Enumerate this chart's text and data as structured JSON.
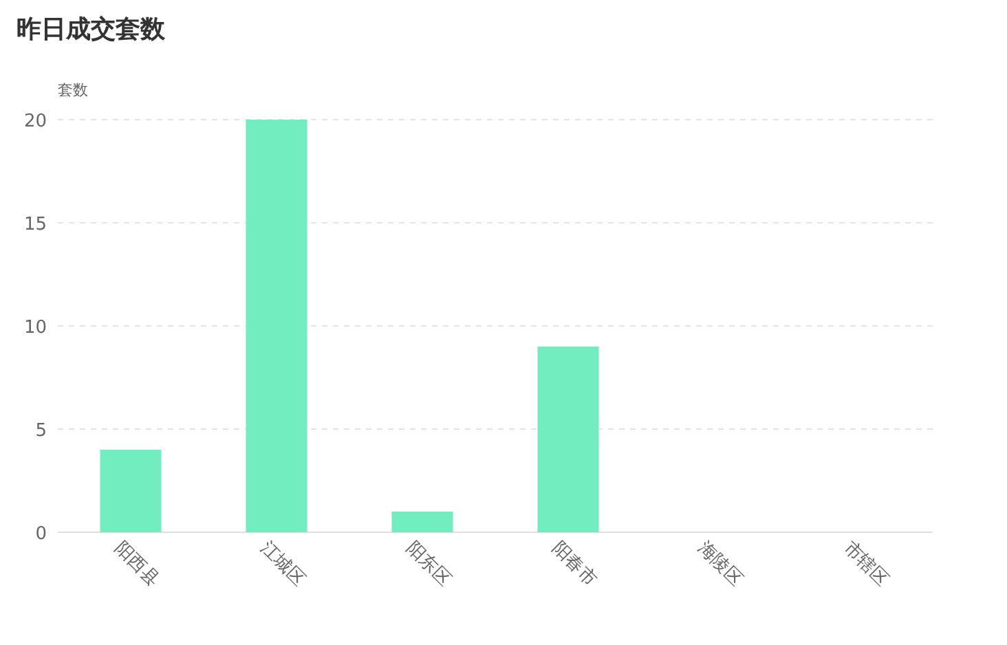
{
  "chart_data": {
    "type": "bar",
    "title": "昨日成交套数",
    "ylabel": "套数",
    "categories": [
      "阳西县",
      "江城区",
      "阳东区",
      "阳春市",
      "海陵区",
      "市辖区"
    ],
    "values": [
      4,
      20,
      1,
      9,
      0,
      0
    ],
    "color": "#72edbf",
    "ylim": [
      0,
      20
    ],
    "yticks": [
      0,
      5,
      10,
      15,
      20
    ],
    "grid": "y"
  }
}
